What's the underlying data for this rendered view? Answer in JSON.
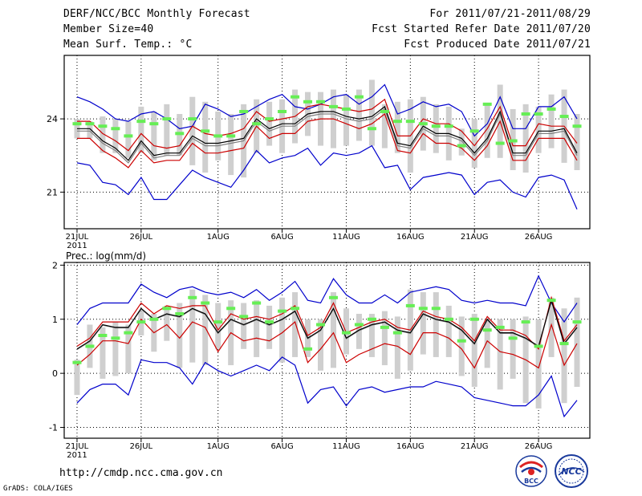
{
  "header": {
    "title": "DERF/NCC/BCC Monthly Forecast",
    "member_size": "Member Size=40",
    "variable": "Mean Surf. Temp.: °C",
    "period": "For 2011/07/21-2011/08/29",
    "start_date": "Fcst Started Refer Date 2011/07/20",
    "produced_date": "Fcst Produced Date 2011/07/21"
  },
  "footer": {
    "url": "http://cmdp.ncc.cma.gov.cn",
    "credit": "GrADS: COLA/IGES",
    "logo_bcc": "BCC",
    "logo_ncc": "NCC"
  },
  "chart_data": [
    {
      "type": "line",
      "title": "Mean Surf. Temp.: °C",
      "x_tick_labels": [
        "21JUL",
        "26JUL",
        "1AUG",
        "6AUG",
        "11AUG",
        "16AUG",
        "21AUG",
        "26AUG"
      ],
      "x_tick_days": [
        0,
        5,
        11,
        16,
        21,
        26,
        31,
        36
      ],
      "x_sub_label": "2011",
      "y_ticks": [
        21,
        24
      ],
      "ylim": [
        19.5,
        26.6
      ],
      "n_days": 40,
      "series": [
        {
          "name": "max",
          "color": "#0000cc",
          "values": [
            24.9,
            24.7,
            24.4,
            24.0,
            23.9,
            24.2,
            24.3,
            24.0,
            23.6,
            23.7,
            24.6,
            24.4,
            24.1,
            24.2,
            24.5,
            24.8,
            25.0,
            24.5,
            24.4,
            24.6,
            24.9,
            25.0,
            24.6,
            24.9,
            25.4,
            24.2,
            24.4,
            24.7,
            24.5,
            24.6,
            24.3,
            23.3,
            23.8,
            24.9,
            23.6,
            23.6,
            24.5,
            24.5,
            24.9,
            24.0
          ]
        },
        {
          "name": "upper",
          "color": "#cc0000",
          "values": [
            23.9,
            23.9,
            23.4,
            23.1,
            22.7,
            23.4,
            22.9,
            22.8,
            22.9,
            23.7,
            23.4,
            23.3,
            23.4,
            23.6,
            24.3,
            23.9,
            24.0,
            24.1,
            24.5,
            24.6,
            24.5,
            24.4,
            24.3,
            24.4,
            24.8,
            23.3,
            23.3,
            24.0,
            23.8,
            23.8,
            23.5,
            22.9,
            23.6,
            24.5,
            22.9,
            22.9,
            23.8,
            23.7,
            23.7,
            23.0
          ]
        },
        {
          "name": "mean_ctrl",
          "color": "#000000",
          "values": [
            23.6,
            23.6,
            23.1,
            22.8,
            22.3,
            23.1,
            22.5,
            22.6,
            22.6,
            23.3,
            23.0,
            23.0,
            23.1,
            23.2,
            24.0,
            23.6,
            23.8,
            23.8,
            24.2,
            24.3,
            24.3,
            24.1,
            24.0,
            24.1,
            24.5,
            23.0,
            22.9,
            23.7,
            23.4,
            23.4,
            23.2,
            22.6,
            23.2,
            24.3,
            22.6,
            22.6,
            23.5,
            23.5,
            23.6,
            22.6
          ]
        },
        {
          "name": "mean_ens",
          "color": "#808080",
          "values": [
            23.5,
            23.5,
            23.0,
            22.7,
            22.2,
            23.0,
            22.4,
            22.5,
            22.5,
            23.2,
            22.9,
            22.9,
            23.0,
            23.1,
            23.9,
            23.5,
            23.7,
            23.7,
            24.1,
            24.2,
            24.2,
            24.0,
            23.9,
            24.0,
            24.4,
            22.9,
            22.8,
            23.6,
            23.3,
            23.3,
            23.1,
            22.5,
            23.1,
            24.2,
            22.5,
            22.5,
            23.4,
            23.4,
            23.5,
            22.5
          ]
        },
        {
          "name": "lower",
          "color": "#cc0000",
          "values": [
            23.2,
            23.2,
            22.7,
            22.4,
            22.0,
            22.7,
            22.2,
            22.3,
            22.3,
            23.0,
            22.6,
            22.6,
            22.7,
            22.8,
            23.7,
            23.2,
            23.4,
            23.4,
            23.9,
            24.0,
            24.0,
            23.8,
            23.6,
            23.8,
            24.2,
            22.7,
            22.6,
            23.4,
            23.0,
            23.0,
            22.8,
            22.3,
            22.9,
            23.9,
            22.3,
            22.3,
            23.2,
            23.2,
            23.2,
            22.3
          ]
        },
        {
          "name": "min",
          "color": "#0000cc",
          "values": [
            22.2,
            22.1,
            21.4,
            21.3,
            20.9,
            21.6,
            20.7,
            20.7,
            21.3,
            21.9,
            21.6,
            21.4,
            21.2,
            21.9,
            22.7,
            22.2,
            22.4,
            22.5,
            22.8,
            22.1,
            22.6,
            22.5,
            22.6,
            22.9,
            22.0,
            22.1,
            21.1,
            21.6,
            21.7,
            21.8,
            21.7,
            20.9,
            21.4,
            21.5,
            21.0,
            20.8,
            21.6,
            21.7,
            21.5,
            20.3
          ]
        }
      ],
      "observed": [
        23.8,
        23.8,
        23.7,
        23.6,
        23.3,
        23.9,
        23.8,
        24.0,
        23.4,
        24.0,
        23.5,
        23.3,
        23.3,
        24.3,
        23.8,
        24.0,
        24.3,
        24.9,
        24.7,
        24.7,
        24.5,
        24.4,
        24.9,
        23.6,
        24.3,
        23.9,
        23.9,
        23.8,
        23.7,
        23.7,
        22.9,
        23.5,
        24.6,
        23.0,
        23.1,
        24.2,
        24.2,
        24.4,
        24.1,
        23.7
      ],
      "box_high": [
        24.0,
        23.9,
        24.1,
        24.0,
        23.9,
        24.5,
        24.3,
        24.6,
        24.2,
        24.9,
        24.7,
        24.3,
        24.2,
        24.6,
        24.8,
        24.7,
        24.8,
        25.2,
        25.1,
        25.1,
        25.2,
        25.0,
        25.2,
        25.6,
        24.6,
        24.7,
        24.8,
        24.9,
        24.6,
        24.5,
        23.6,
        24.0,
        24.6,
        25.4,
        24.4,
        24.6,
        24.5,
        25.0,
        25.2,
        24.2
      ],
      "box_low": [
        23.2,
        23.2,
        22.6,
        22.6,
        22.4,
        22.6,
        22.3,
        22.5,
        22.5,
        22.1,
        21.8,
        22.3,
        21.7,
        21.6,
        22.6,
        22.9,
        22.6,
        23.0,
        23.3,
        22.9,
        22.8,
        22.9,
        23.1,
        22.9,
        22.8,
        22.6,
        21.8,
        22.7,
        22.6,
        22.3,
        22.5,
        22.0,
        22.4,
        22.4,
        21.9,
        21.8,
        22.6,
        22.8,
        22.2,
        21.9
      ]
    },
    {
      "type": "line",
      "title": "Prec.: log(mm/d)",
      "x_tick_labels": [
        "21JUL",
        "26JUL",
        "1AUG",
        "6AUG",
        "11AUG",
        "16AUG",
        "21AUG",
        "26AUG"
      ],
      "x_tick_days": [
        0,
        5,
        11,
        16,
        21,
        26,
        31,
        36
      ],
      "x_sub_label": "2011",
      "y_ticks": [
        -1,
        0,
        1,
        2
      ],
      "ylim": [
        -1.2,
        2.05
      ],
      "n_days": 40,
      "series": [
        {
          "name": "max",
          "color": "#0000cc",
          "values": [
            0.9,
            1.2,
            1.3,
            1.3,
            1.3,
            1.65,
            1.5,
            1.4,
            1.55,
            1.6,
            1.5,
            1.45,
            1.5,
            1.4,
            1.55,
            1.35,
            1.5,
            1.7,
            1.35,
            1.3,
            1.75,
            1.45,
            1.3,
            1.3,
            1.45,
            1.3,
            1.5,
            1.55,
            1.6,
            1.55,
            1.35,
            1.3,
            1.35,
            1.3,
            1.3,
            1.25,
            1.8,
            1.3,
            0.95,
            1.3
          ]
        },
        {
          "name": "upper",
          "color": "#cc0000",
          "values": [
            0.5,
            0.65,
            0.95,
            0.95,
            0.95,
            1.3,
            1.1,
            1.25,
            1.2,
            1.25,
            1.25,
            0.8,
            1.1,
            1.0,
            1.05,
            1.0,
            1.1,
            1.25,
            0.7,
            0.85,
            1.3,
            0.75,
            0.85,
            0.95,
            1.0,
            0.85,
            0.8,
            1.15,
            1.05,
            1.0,
            0.85,
            0.6,
            1.05,
            0.8,
            0.8,
            0.7,
            0.45,
            1.4,
            0.6,
            0.9
          ]
        },
        {
          "name": "mean_ctrl",
          "color": "#000000",
          "values": [
            0.45,
            0.6,
            0.9,
            0.85,
            0.85,
            1.2,
            1.0,
            1.1,
            1.05,
            1.2,
            1.1,
            0.75,
            1.0,
            0.9,
            1.0,
            0.9,
            1.0,
            1.15,
            0.65,
            0.8,
            1.2,
            0.65,
            0.8,
            0.9,
            0.95,
            0.8,
            0.75,
            1.1,
            1.0,
            0.95,
            0.8,
            0.55,
            1.0,
            0.75,
            0.75,
            0.65,
            0.5,
            1.35,
            0.55,
            0.85
          ]
        },
        {
          "name": "mean_ens",
          "color": "#808080",
          "values": [
            0.44,
            0.59,
            0.89,
            0.84,
            0.84,
            1.19,
            0.99,
            1.09,
            1.04,
            1.19,
            1.09,
            0.74,
            0.99,
            0.89,
            0.99,
            0.89,
            0.99,
            1.14,
            0.64,
            0.79,
            1.19,
            0.64,
            0.79,
            0.89,
            0.94,
            0.79,
            0.74,
            1.09,
            0.99,
            0.94,
            0.79,
            0.54,
            0.99,
            0.74,
            0.74,
            0.64,
            0.49,
            1.34,
            0.54,
            0.84
          ]
        },
        {
          "name": "lower",
          "color": "#cc0000",
          "values": [
            0.15,
            0.35,
            0.6,
            0.6,
            0.55,
            1.0,
            0.75,
            0.9,
            0.65,
            0.95,
            0.85,
            0.4,
            0.75,
            0.6,
            0.65,
            0.6,
            0.75,
            0.95,
            0.2,
            0.45,
            0.75,
            0.2,
            0.35,
            0.45,
            0.55,
            0.5,
            0.35,
            0.75,
            0.75,
            0.65,
            0.45,
            0.1,
            0.6,
            0.4,
            0.35,
            0.25,
            0.1,
            0.9,
            0.15,
            0.55
          ]
        },
        {
          "name": "min",
          "color": "#0000cc",
          "values": [
            -0.55,
            -0.3,
            -0.2,
            -0.2,
            -0.4,
            0.25,
            0.2,
            0.2,
            0.1,
            -0.2,
            0.2,
            0.05,
            -0.05,
            0.05,
            0.15,
            0.05,
            0.3,
            0.15,
            -0.55,
            -0.3,
            -0.25,
            -0.6,
            -0.3,
            -0.25,
            -0.35,
            -0.3,
            -0.25,
            -0.25,
            -0.15,
            -0.2,
            -0.25,
            -0.45,
            -0.5,
            -0.55,
            -0.6,
            -0.6,
            -0.4,
            -0.05,
            -0.8,
            -0.5
          ]
        },
        {
          "name": "observed",
          "color": "#66ff66",
          "values": [
            0.2,
            0.5,
            0.7,
            0.65,
            0.75,
            0.95,
            1.0,
            1.2,
            1.1,
            1.4,
            1.3,
            0.95,
            1.2,
            1.05,
            1.3,
            0.95,
            1.15,
            1.2,
            0.45,
            0.9,
            1.4,
            0.75,
            0.9,
            1.0,
            0.85,
            0.75,
            1.25,
            1.2,
            1.2,
            1.0,
            0.6,
            1.0,
            0.8,
            0.85,
            0.65,
            0.95,
            0.5,
            1.35,
            0.55,
            0.95
          ]
        }
      ],
      "box_high": [
        0.25,
        0.9,
        0.85,
        0.95,
        0.9,
        1.15,
        1.1,
        1.25,
        1.3,
        1.55,
        1.45,
        1.3,
        1.35,
        1.3,
        1.35,
        1.25,
        1.4,
        1.5,
        1.0,
        1.0,
        1.5,
        1.2,
        1.1,
        1.1,
        1.15,
        1.05,
        1.55,
        1.5,
        1.5,
        1.25,
        1.05,
        1.1,
        1.0,
        1.0,
        1.0,
        1.05,
        1.0,
        1.4,
        1.2,
        1.4
      ],
      "box_low": [
        -0.4,
        0.1,
        -0.1,
        -0.05,
        0.0,
        0.7,
        0.4,
        0.6,
        0.1,
        0.2,
        0.15,
        0.45,
        0.15,
        0.45,
        0.3,
        0.45,
        0.2,
        0.3,
        0.3,
        0.05,
        0.1,
        0.35,
        0.45,
        0.3,
        0.15,
        -0.1,
        0.05,
        0.35,
        0.3,
        0.3,
        -0.05,
        -0.25,
        0.1,
        -0.3,
        -0.1,
        -0.55,
        -0.65,
        0.3,
        -0.55,
        -0.25
      ]
    }
  ]
}
